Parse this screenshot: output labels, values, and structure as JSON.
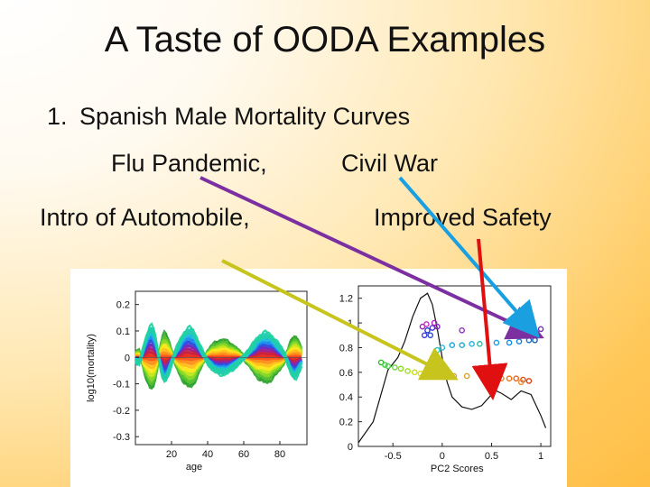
{
  "slide": {
    "title": "A Taste of OODA Examples",
    "item_number": "1.",
    "item_text": "Spanish Male Mortality Curves",
    "labels": {
      "flu": "Flu Pandemic,",
      "civil_war": "Civil War",
      "automobile": "Intro of Automobile,",
      "safety": "Improved Safety"
    },
    "colors": {
      "purple_arrow": "#7b2fa0",
      "blue_arrow": "#1aa0e0",
      "yellow_arrow": "#c8c41e",
      "red_arrow": "#e01010"
    }
  },
  "chart_data": [
    {
      "type": "line",
      "title": "",
      "xlabel": "age",
      "ylabel": "log10(mortality)",
      "xticks": [
        "20",
        "40",
        "60",
        "80"
      ],
      "yticks": [
        "0.2",
        "0.1",
        "0",
        "-0.1",
        "-0.2",
        "-0.3"
      ],
      "xlim": [
        0,
        95
      ],
      "ylim": [
        -0.33,
        0.25
      ],
      "series_count": 60
    },
    {
      "type": "scatter",
      "title": "",
      "xlabel": "PC2 Scores",
      "ylabel": "",
      "xticks": [
        "-0.5",
        "0",
        "0.5",
        "1"
      ],
      "yticks": [
        "1.2",
        "1",
        "0.8",
        "0.6",
        "0.4",
        "0.2",
        "0"
      ],
      "xlim": [
        -0.85,
        1.1
      ],
      "ylim": [
        0,
        1.3
      ],
      "density_curve": {
        "x": [
          -0.85,
          -0.7,
          -0.55,
          -0.45,
          -0.38,
          -0.3,
          -0.22,
          -0.15,
          -0.1,
          -0.05,
          0.0,
          0.05,
          0.1,
          0.2,
          0.3,
          0.4,
          0.5,
          0.55,
          0.6,
          0.7,
          0.8,
          0.9,
          1.0,
          1.05
        ],
        "y": [
          0.03,
          0.2,
          0.62,
          0.72,
          0.85,
          1.05,
          1.2,
          1.24,
          1.15,
          0.95,
          0.72,
          0.52,
          0.4,
          0.32,
          0.3,
          0.33,
          0.42,
          0.45,
          0.43,
          0.38,
          0.45,
          0.42,
          0.25,
          0.15
        ]
      },
      "points": [
        {
          "x": -0.62,
          "y": 0.68,
          "color": "#30c030"
        },
        {
          "x": -0.58,
          "y": 0.66,
          "color": "#3cd03c"
        },
        {
          "x": -0.55,
          "y": 0.65,
          "color": "#50d050"
        },
        {
          "x": -0.48,
          "y": 0.64,
          "color": "#70d840"
        },
        {
          "x": -0.42,
          "y": 0.63,
          "color": "#88e020"
        },
        {
          "x": -0.35,
          "y": 0.61,
          "color": "#a0e020"
        },
        {
          "x": -0.28,
          "y": 0.6,
          "color": "#c8e010"
        },
        {
          "x": -0.22,
          "y": 0.59,
          "color": "#e0e010"
        },
        {
          "x": -0.15,
          "y": 0.58,
          "color": "#f0d010"
        },
        {
          "x": -0.08,
          "y": 0.58,
          "color": "#f0c000"
        },
        {
          "x": -0.02,
          "y": 0.57,
          "color": "#e8b000"
        },
        {
          "x": 0.12,
          "y": 0.57,
          "color": "#d8a030"
        },
        {
          "x": 0.25,
          "y": 0.57,
          "color": "#e0a020"
        },
        {
          "x": 0.45,
          "y": 0.55,
          "color": "#e8a010"
        },
        {
          "x": 0.6,
          "y": 0.55,
          "color": "#f08010"
        },
        {
          "x": 0.68,
          "y": 0.55,
          "color": "#f07010"
        },
        {
          "x": 0.75,
          "y": 0.55,
          "color": "#e86010"
        },
        {
          "x": 0.82,
          "y": 0.54,
          "color": "#e05010"
        },
        {
          "x": 0.88,
          "y": 0.53,
          "color": "#d84010"
        },
        {
          "x": 0.8,
          "y": 0.52,
          "color": "#f09030"
        },
        {
          "x": -0.05,
          "y": 0.78,
          "color": "#20c0c0"
        },
        {
          "x": 0.0,
          "y": 0.8,
          "color": "#30b8d0"
        },
        {
          "x": 0.1,
          "y": 0.82,
          "color": "#20a8d8"
        },
        {
          "x": 0.2,
          "y": 0.82,
          "color": "#20b0c8"
        },
        {
          "x": 0.3,
          "y": 0.83,
          "color": "#30b0e0"
        },
        {
          "x": 0.38,
          "y": 0.83,
          "color": "#20c0b0"
        },
        {
          "x": 0.55,
          "y": 0.84,
          "color": "#20a0e0"
        },
        {
          "x": 0.68,
          "y": 0.84,
          "color": "#1890e0"
        },
        {
          "x": 0.78,
          "y": 0.85,
          "color": "#1a80d0"
        },
        {
          "x": 0.88,
          "y": 0.86,
          "color": "#2070c0"
        },
        {
          "x": 0.94,
          "y": 0.86,
          "color": "#2060b0"
        },
        {
          "x": -0.18,
          "y": 0.9,
          "color": "#4040e0"
        },
        {
          "x": -0.12,
          "y": 0.9,
          "color": "#3050d0"
        },
        {
          "x": -0.15,
          "y": 0.94,
          "color": "#2040c0"
        },
        {
          "x": -0.1,
          "y": 0.96,
          "color": "#5030d0"
        },
        {
          "x": -0.2,
          "y": 0.97,
          "color": "#a020c0"
        },
        {
          "x": -0.05,
          "y": 0.97,
          "color": "#8020c0"
        },
        {
          "x": -0.16,
          "y": 0.99,
          "color": "#c030b0"
        },
        {
          "x": -0.08,
          "y": 1.0,
          "color": "#b020c0"
        },
        {
          "x": 0.2,
          "y": 0.94,
          "color": "#9030c0"
        },
        {
          "x": 1.0,
          "y": 0.95,
          "color": "#7030b0"
        }
      ]
    }
  ]
}
